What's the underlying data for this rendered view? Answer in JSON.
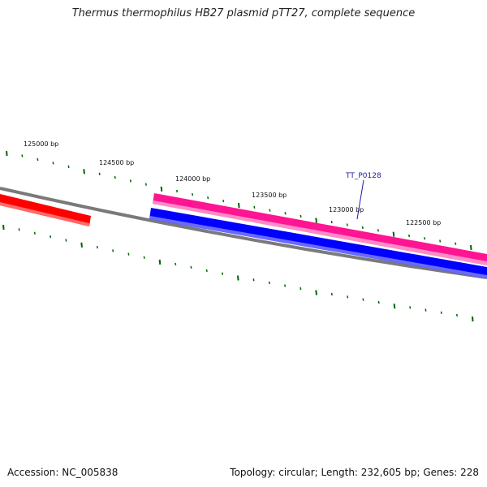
{
  "title": "Thermus thermophilus HB27 plasmid pTT27, complete sequence",
  "footer": {
    "accession": "Accession: NC_005838",
    "summary": "Topology: circular; Length: 232,605 bp; Genes: 228"
  },
  "colors": {
    "backbone": "#808080",
    "forward_gene": "#ff1493",
    "reverse_gene": "#0000ff",
    "other_gene": "#ff0000",
    "ticks": "#006400",
    "gene_label": "#1a1aa6"
  },
  "tick_labels": [
    "125000 bp",
    "124500 bp",
    "124000 bp",
    "123500 bp",
    "123000 bp",
    "122500 bp"
  ],
  "features": [
    {
      "name": "red-gene-block",
      "color": "#ff0000"
    },
    {
      "name": "pink-gene-block",
      "color": "#ff1493"
    },
    {
      "name": "blue-gene-block",
      "color": "#0000ff"
    }
  ],
  "gene_label": "TT_P0128"
}
